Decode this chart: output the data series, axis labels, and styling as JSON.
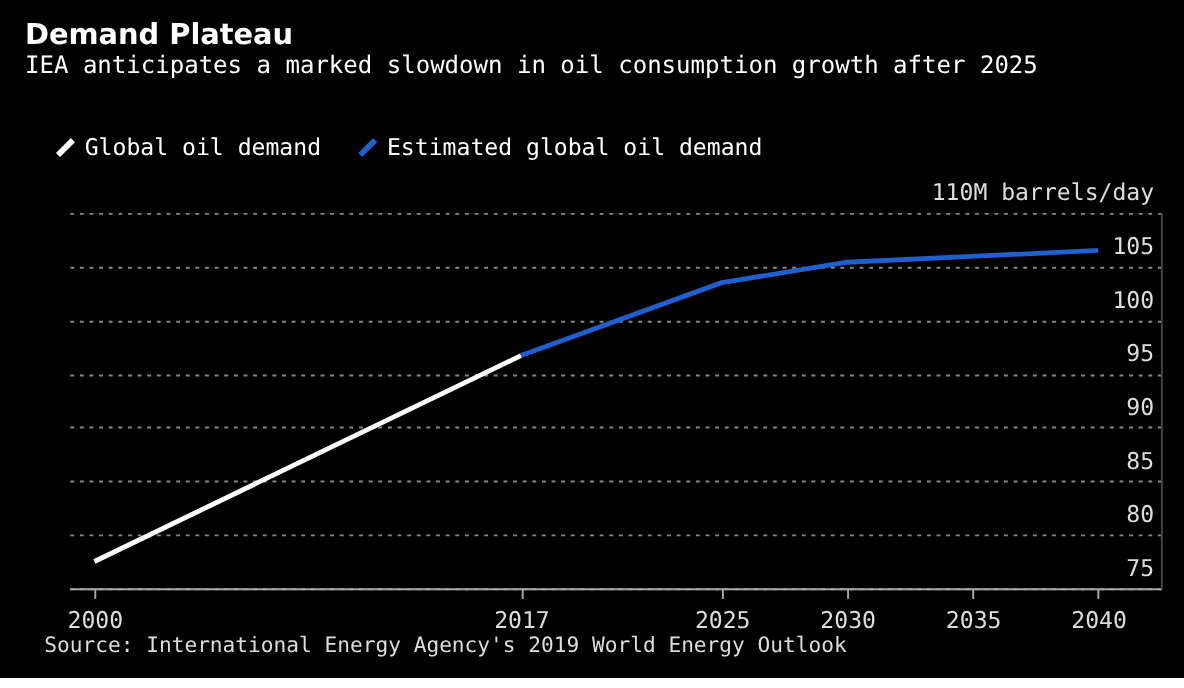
{
  "chart_data": {
    "type": "line",
    "title": "Demand Plateau",
    "subtitle": "IEA anticipates a marked slowdown in oil consumption growth after 2025",
    "series": [
      {
        "name": "Global oil demand",
        "color": "#ffffff",
        "x": [
          2000,
          2017
        ],
        "values": [
          77.5,
          96.7
        ]
      },
      {
        "name": "Estimated global oil demand",
        "color": "#1f5fd0",
        "x": [
          2017,
          2025,
          2030,
          2040
        ],
        "values": [
          96.7,
          103.5,
          105.4,
          106.5
        ]
      }
    ],
    "xlim": [
      1999,
      2042.5
    ],
    "xticks": [
      2000,
      2017,
      2025,
      2030,
      2035,
      2040
    ],
    "ylim": [
      75,
      110
    ],
    "yticks": [
      75,
      80,
      85,
      90,
      95,
      100,
      {
        "value": 110,
        "label": "110M barrels/day"
      },
      105
    ],
    "grid": "y",
    "legend": "top left",
    "marker": "none",
    "line_style": "solid",
    "annotations": [
      "Source: International Energy Agency's 2019 World Energy Outlook"
    ]
  }
}
